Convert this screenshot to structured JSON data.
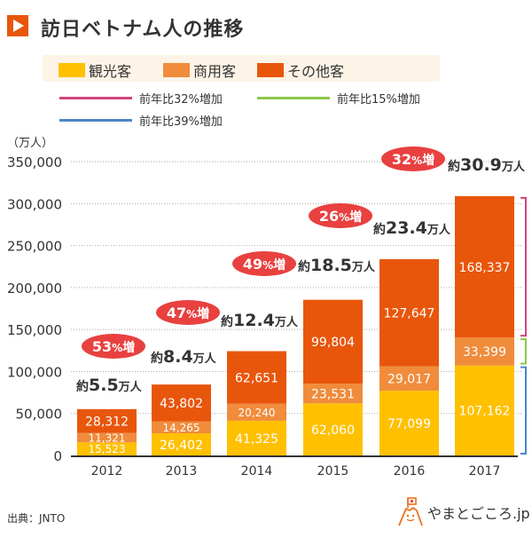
{
  "title": "訪日ベトナム人の推移",
  "title_icon": "play-triangle-icon",
  "legend": [
    {
      "label": "観光客",
      "color": "#ffc000"
    },
    {
      "label": "商用客",
      "color": "#f08c3c"
    },
    {
      "label": "その他客",
      "color": "#e8560c"
    }
  ],
  "line_legend": [
    {
      "label": "前年比32%増加",
      "color": "#d0457e"
    },
    {
      "label": "前年比15%増加",
      "color": "#8cc84b"
    },
    {
      "label": "前年比39%増加",
      "color": "#4a86c8"
    }
  ],
  "unit_label": "（万人）",
  "source": "出典：JNTO",
  "logo_text": "やまとごころ.jp",
  "chart_data": {
    "type": "bar",
    "stacked": true,
    "title": "訪日ベトナム人の推移",
    "xlabel": "",
    "ylabel": "（万人）",
    "ylim": [
      0,
      350000
    ],
    "yticks": [
      0,
      50000,
      100000,
      150000,
      200000,
      250000,
      300000,
      350000
    ],
    "ytick_labels": [
      "0",
      "50,000",
      "100,000",
      "150,000",
      "200,000",
      "250,000",
      "300,000",
      "350,000"
    ],
    "grid": true,
    "legend_position": "top",
    "categories": [
      "2012",
      "2013",
      "2014",
      "2015",
      "2016",
      "2017"
    ],
    "series": [
      {
        "name": "観光客",
        "color": "#ffc000",
        "values": [
          15523,
          26402,
          41325,
          62060,
          77099,
          107162
        ],
        "labels": [
          "15,523",
          "26,402",
          "41,325",
          "62,060",
          "77,099",
          "107,162"
        ]
      },
      {
        "name": "商用客",
        "color": "#f08c3c",
        "values": [
          11321,
          14265,
          20240,
          23531,
          29017,
          33399
        ],
        "labels": [
          "11,321",
          "14,265",
          "20,240",
          "23,531",
          "29,017",
          "33,399"
        ]
      },
      {
        "name": "その他客",
        "color": "#e8560c",
        "values": [
          28312,
          43802,
          62651,
          99804,
          127647,
          168337
        ],
        "labels": [
          "28,312",
          "43,802",
          "62,651",
          "99,804",
          "127,647",
          "168,337"
        ]
      }
    ],
    "totals": [
      {
        "prefix": "約",
        "value": "5.5",
        "suffix": "万人"
      },
      {
        "prefix": "約",
        "value": "8.4",
        "suffix": "万人"
      },
      {
        "prefix": "約",
        "value": "12.4",
        "suffix": "万人"
      },
      {
        "prefix": "約",
        "value": "18.5",
        "suffix": "万人"
      },
      {
        "prefix": "約",
        "value": "23.4",
        "suffix": "万人"
      },
      {
        "prefix": "約",
        "value": "30.9",
        "suffix": "万人"
      }
    ],
    "growth_badges": [
      {
        "num": "53",
        "pct": "%",
        "suffix": "増"
      },
      {
        "num": "47",
        "pct": "%",
        "suffix": "増"
      },
      {
        "num": "49",
        "pct": "%",
        "suffix": "増"
      },
      {
        "num": "26",
        "pct": "%",
        "suffix": "増"
      },
      {
        "num": "32",
        "pct": "%",
        "suffix": "増"
      }
    ],
    "badge_color": "#e8413f",
    "brackets": [
      {
        "series": "その他客",
        "color": "#d0457e",
        "growth": "前年比32%増加"
      },
      {
        "series": "商用客",
        "color": "#8cc84b",
        "growth": "前年比15%増加"
      },
      {
        "series": "観光客",
        "color": "#4a86c8",
        "growth": "前年比39%増加"
      }
    ]
  }
}
